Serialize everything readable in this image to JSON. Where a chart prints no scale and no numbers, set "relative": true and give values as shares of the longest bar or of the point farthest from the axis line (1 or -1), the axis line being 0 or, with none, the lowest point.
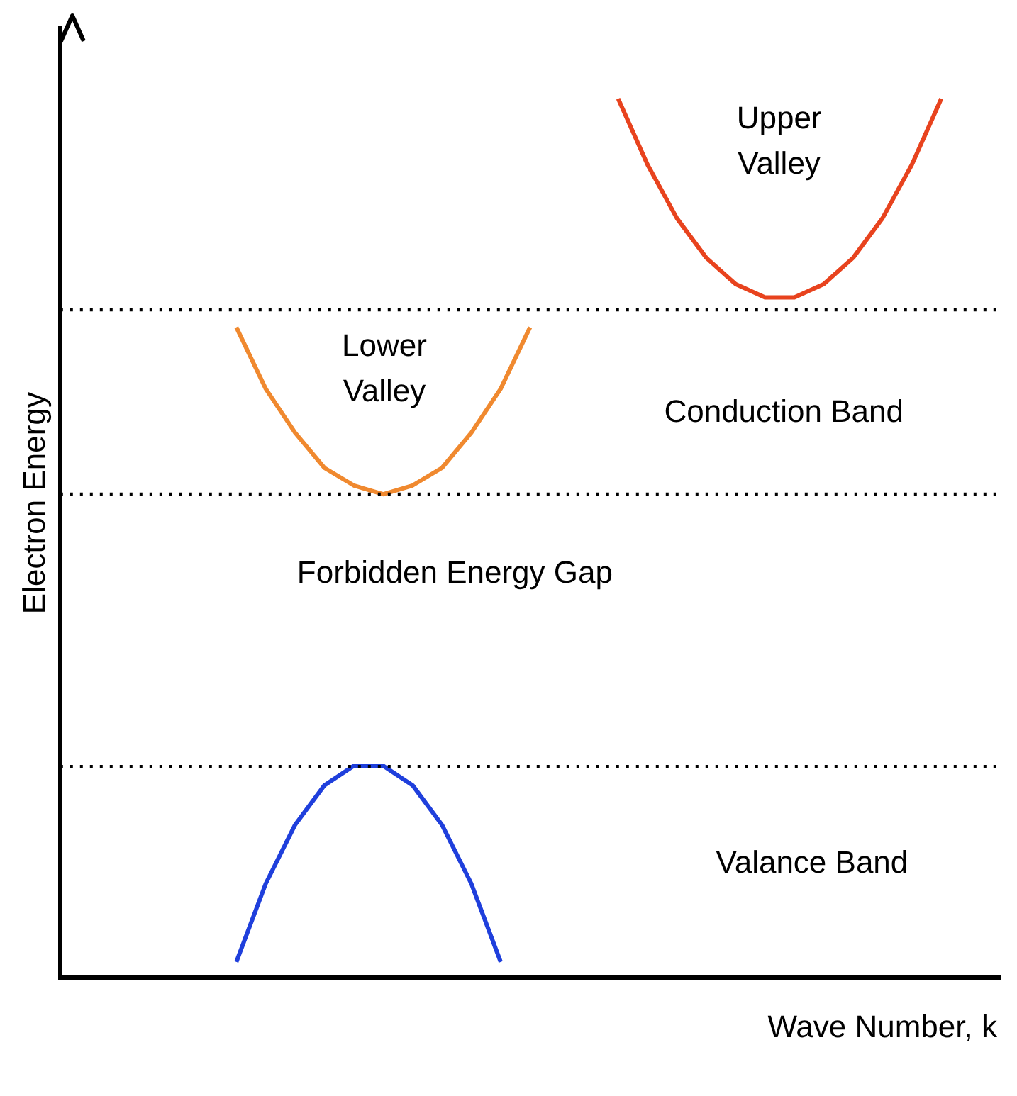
{
  "chart_data": {
    "type": "line",
    "relative": true,
    "xlabel": "Wave Number, k",
    "ylabel": "Electron Energy",
    "categories": [
      null,
      null,
      null,
      null,
      null,
      null,
      null,
      null,
      null,
      null,
      null,
      null,
      null,
      null,
      null,
      null,
      null,
      null,
      null,
      null,
      null,
      null,
      null,
      null,
      null,
      null,
      null,
      null,
      null,
      null,
      null,
      null,
      null
    ],
    "series": [
      {
        "color": "#e8431e",
        "values": [
          null,
          null,
          null,
          null,
          null,
          null,
          null,
          null,
          null,
          null,
          null,
          null,
          null,
          null,
          null,
          null,
          null,
          null,
          null,
          1.0,
          0.925,
          0.864,
          0.819,
          0.789,
          0.774,
          0.774,
          0.789,
          0.819,
          0.864,
          0.925,
          1.0,
          null,
          null
        ]
      },
      {
        "color": "#f0892f",
        "values": [
          null,
          null,
          null,
          null,
          null,
          null,
          0.74,
          0.67,
          0.62,
          0.58,
          0.56,
          0.55,
          0.56,
          0.58,
          0.62,
          0.67,
          0.74,
          null,
          null,
          null,
          null,
          null,
          null,
          null,
          null,
          null,
          null,
          null,
          null,
          null,
          null,
          null,
          null
        ]
      },
      {
        "color": "#1f3fdc",
        "values": [
          null,
          null,
          null,
          null,
          null,
          null,
          0.018,
          0.107,
          0.174,
          0.219,
          0.241,
          0.241,
          0.219,
          0.174,
          0.107,
          0.018,
          null,
          null,
          null,
          null,
          null,
          null,
          null,
          null,
          null,
          null,
          null,
          null,
          null,
          null,
          null,
          null,
          null
        ]
      }
    ],
    "ref_lines": [
      {
        "axis": "y",
        "value": 0.76,
        "line_style": "dotted"
      },
      {
        "axis": "y",
        "value": 0.55,
        "line_style": "dotted"
      },
      {
        "axis": "y",
        "value": 0.24,
        "line_style": "dotted"
      }
    ],
    "annotations": [
      "Upper Valley",
      "Lower Valley",
      "Conduction Band",
      "Forbidden Energy Gap",
      "Valance Band"
    ],
    "grid": false,
    "legend": false,
    "marker": "none",
    "line_style": "solid"
  }
}
